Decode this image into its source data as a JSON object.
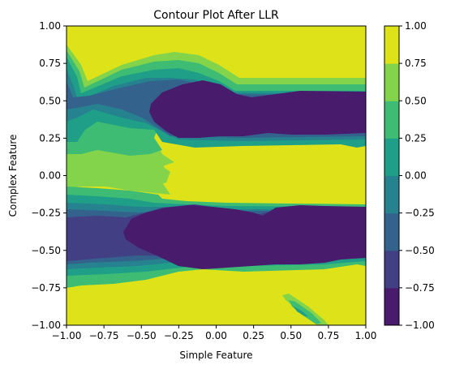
{
  "chart_data": {
    "type": "contour",
    "title": "Contour Plot After LLR",
    "xlabel": "Simple Feature",
    "ylabel": "Complex Feature",
    "xlim": [
      -1.0,
      1.0
    ],
    "ylim": [
      -1.0,
      1.0
    ],
    "x_ticks": [
      "−1.00",
      "−0.75",
      "−0.50",
      "−0.25",
      "0.00",
      "0.25",
      "0.50",
      "0.75",
      "1.00"
    ],
    "y_ticks": [
      "1.00",
      "0.75",
      "0.50",
      "0.25",
      "0.00",
      "−0.25",
      "−0.50",
      "−0.75",
      "−1.00"
    ],
    "colorbar": {
      "levels": [
        -1.0,
        -0.75,
        -0.5,
        -0.25,
        0.0,
        0.25,
        0.5,
        0.75,
        1.0
      ],
      "tick_labels": [
        "1.00",
        "0.75",
        "0.50",
        "0.25",
        "0.00",
        "−0.25",
        "−0.50",
        "−0.75",
        "−1.00"
      ],
      "colors": [
        "#481b6d",
        "#423f85",
        "#33638d",
        "#26828e",
        "#1f9f88",
        "#3fbc73",
        "#84d44b",
        "#dde318"
      ]
    },
    "regions_note": "Two dark bands (value about -1) near y=0.38 and y=-0.40 spanning x from about -0.27 to 1.0; bright band (value about 1) at y in [0.75,1], y in [-1,-0.75] and between the bands; gradient structure toward x=-1."
  }
}
